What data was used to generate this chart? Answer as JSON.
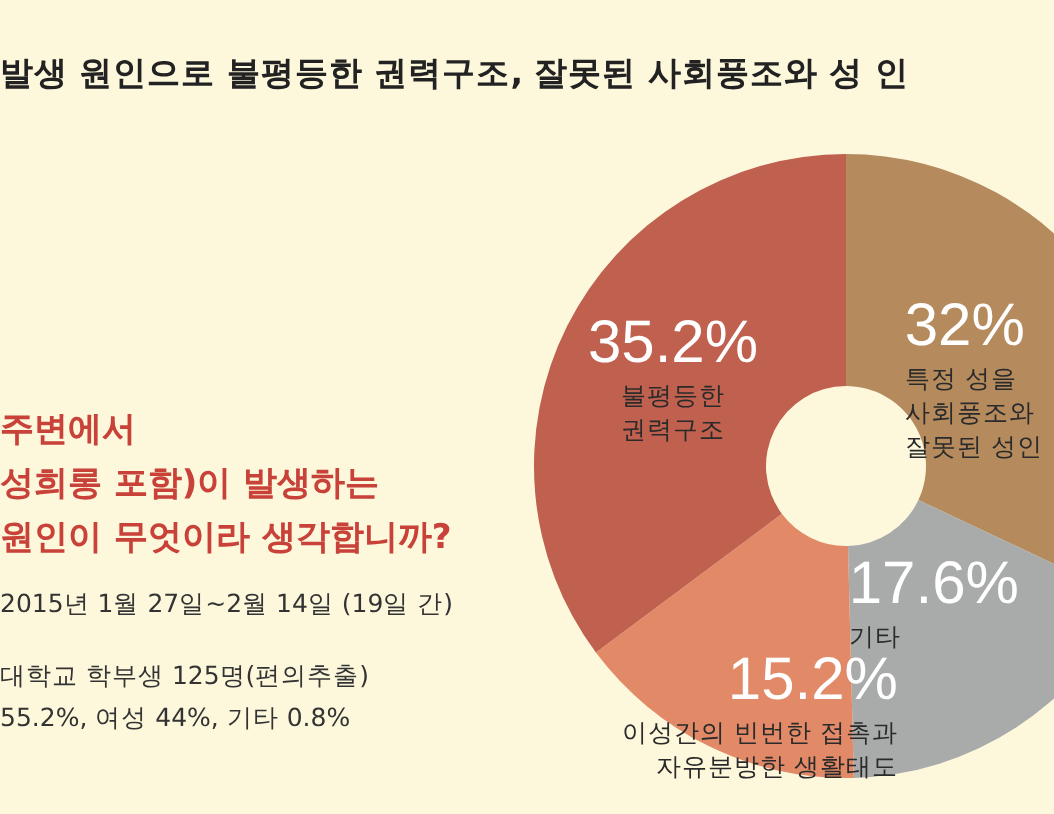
{
  "chart_data": {
    "type": "donut",
    "title": "발생 원인으로 불평등한 권력구조, 잘못된 사회풍조와 성 인",
    "subtitle": "주변에서\n성희롱 포함)이 발생하는\n원인이 무엇이라 생각합니까?",
    "annotations": [
      "2015년 1월 27일~2월 14일 (19일 간)",
      "대학교 학부생 125명(편의추출)",
      "55.2%, 여성 44%, 기타 0.8%"
    ],
    "categories": [
      "특정 성을\n사회풍조와\n잘못된 성인",
      "기타",
      "이성간의 빈번한 접촉과\n자유분방한 생활태도",
      "불평등한\n권력구조"
    ],
    "values": [
      32,
      17.6,
      15.2,
      35.2
    ],
    "value_labels": [
      "32%",
      "17.6%",
      "15.2%",
      "35.2%"
    ],
    "colors": [
      "#b58b5e",
      "#a9abaa",
      "#e28a68",
      "#c0604f"
    ]
  }
}
